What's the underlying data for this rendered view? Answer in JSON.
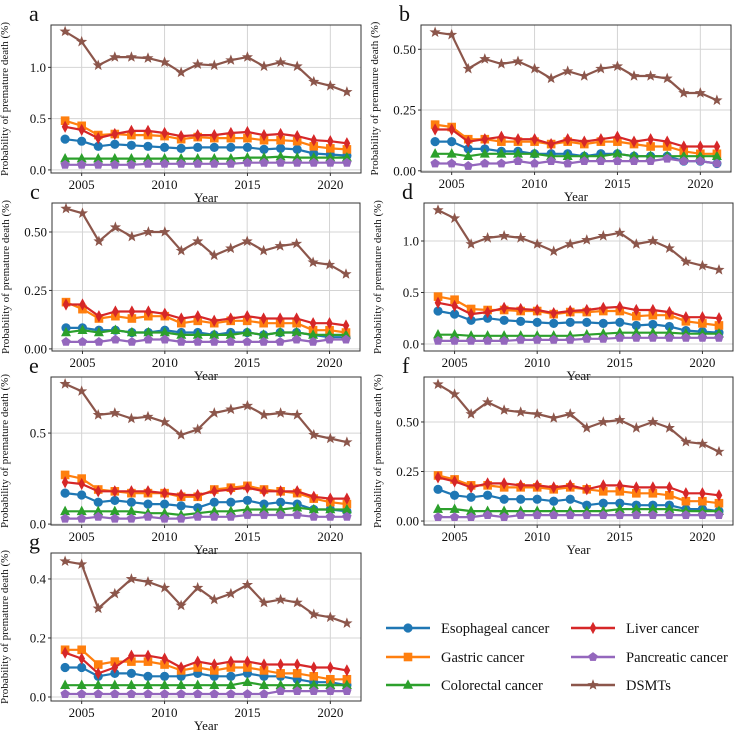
{
  "chart_data": {
    "type": "line",
    "xlabel": "Year",
    "ylabel": "Probability of premature death (%)",
    "x": [
      2004,
      2005,
      2006,
      2007,
      2008,
      2009,
      2010,
      2011,
      2012,
      2013,
      2014,
      2015,
      2016,
      2017,
      2018,
      2019,
      2020,
      2021
    ],
    "xlim": [
      2003.15,
      2021.85
    ],
    "xticks": [
      {
        "v": 2005,
        "label": "2005"
      },
      {
        "v": 2010,
        "label": "2010"
      },
      {
        "v": 2015,
        "label": "2015"
      },
      {
        "v": 2020,
        "label": "2020"
      }
    ],
    "grid": true,
    "legend_placement": "bottom-right",
    "series_meta": [
      {
        "name": "Esophageal cancer",
        "color": "#1f77b4",
        "marker": "circle"
      },
      {
        "name": "Gastric cancer",
        "color": "#ff7f0e",
        "marker": "square"
      },
      {
        "name": "Colorectal cancer",
        "color": "#2ca02c",
        "marker": "triangle"
      },
      {
        "name": "Liver cancer",
        "color": "#d62728",
        "marker": "thin-diamond"
      },
      {
        "name": "Pancreatic cancer",
        "color": "#9467bd",
        "marker": "pentagon"
      },
      {
        "name": "DSMTs",
        "color": "#8c564b",
        "marker": "star"
      }
    ],
    "panels": [
      {
        "label": "a",
        "ylim": [
          -0.03,
          1.413
        ],
        "yticks": [
          {
            "v": 0,
            "label": "0.0"
          },
          {
            "v": 0.5,
            "label": "0.5"
          },
          {
            "v": 1.0,
            "label": "1.0"
          }
        ],
        "series": [
          [
            0.3,
            0.28,
            0.23,
            0.25,
            0.24,
            0.23,
            0.22,
            0.21,
            0.22,
            0.22,
            0.22,
            0.22,
            0.2,
            0.21,
            0.2,
            0.16,
            0.15,
            0.14
          ],
          [
            0.48,
            0.43,
            0.34,
            0.35,
            0.34,
            0.34,
            0.33,
            0.3,
            0.32,
            0.31,
            0.31,
            0.31,
            0.29,
            0.29,
            0.28,
            0.23,
            0.21,
            0.2
          ],
          [
            0.11,
            0.11,
            0.11,
            0.11,
            0.11,
            0.11,
            0.11,
            0.11,
            0.11,
            0.11,
            0.11,
            0.12,
            0.12,
            0.13,
            0.12,
            0.12,
            0.12,
            0.12
          ],
          [
            0.42,
            0.39,
            0.31,
            0.35,
            0.38,
            0.38,
            0.36,
            0.33,
            0.34,
            0.34,
            0.36,
            0.37,
            0.34,
            0.35,
            0.33,
            0.29,
            0.28,
            0.26
          ],
          [
            0.05,
            0.05,
            0.05,
            0.05,
            0.05,
            0.06,
            0.06,
            0.06,
            0.06,
            0.06,
            0.06,
            0.07,
            0.07,
            0.07,
            0.07,
            0.07,
            0.07,
            0.07
          ],
          [
            1.35,
            1.25,
            1.02,
            1.1,
            1.1,
            1.09,
            1.05,
            0.95,
            1.03,
            1.02,
            1.07,
            1.1,
            1.01,
            1.05,
            1.01,
            0.86,
            0.82,
            0.76
          ]
        ]
      },
      {
        "label": "b",
        "ylim": [
          -0.005,
          0.6
        ],
        "yticks": [
          {
            "v": 0,
            "label": "0.00"
          },
          {
            "v": 0.25,
            "label": "0.25"
          },
          {
            "v": 0.5,
            "label": "0.50"
          }
        ],
        "series": [
          [
            0.12,
            0.12,
            0.09,
            0.09,
            0.08,
            0.08,
            0.07,
            0.07,
            0.07,
            0.06,
            0.07,
            0.07,
            0.06,
            0.06,
            0.06,
            0.04,
            0.04,
            0.03
          ],
          [
            0.19,
            0.18,
            0.13,
            0.13,
            0.12,
            0.12,
            0.12,
            0.11,
            0.12,
            0.11,
            0.12,
            0.12,
            0.11,
            0.1,
            0.1,
            0.08,
            0.07,
            0.07
          ],
          [
            0.07,
            0.07,
            0.06,
            0.07,
            0.07,
            0.07,
            0.07,
            0.06,
            0.06,
            0.06,
            0.06,
            0.07,
            0.06,
            0.06,
            0.06,
            0.06,
            0.06,
            0.06
          ],
          [
            0.17,
            0.17,
            0.12,
            0.13,
            0.14,
            0.13,
            0.13,
            0.11,
            0.13,
            0.12,
            0.13,
            0.14,
            0.12,
            0.13,
            0.12,
            0.1,
            0.1,
            0.1
          ],
          [
            0.03,
            0.03,
            0.02,
            0.03,
            0.03,
            0.04,
            0.03,
            0.04,
            0.03,
            0.04,
            0.04,
            0.04,
            0.04,
            0.04,
            0.05,
            0.04,
            0.04,
            0.03
          ],
          [
            0.57,
            0.56,
            0.42,
            0.46,
            0.44,
            0.45,
            0.42,
            0.38,
            0.41,
            0.39,
            0.42,
            0.43,
            0.39,
            0.39,
            0.38,
            0.32,
            0.32,
            0.29
          ]
        ]
      },
      {
        "label": "c",
        "ylim": [
          -0.009,
          0.624
        ],
        "yticks": [
          {
            "v": 0,
            "label": "0.00"
          },
          {
            "v": 0.25,
            "label": "0.25"
          },
          {
            "v": 0.5,
            "label": "0.50"
          }
        ],
        "series": [
          [
            0.09,
            0.09,
            0.08,
            0.08,
            0.07,
            0.07,
            0.08,
            0.07,
            0.07,
            0.06,
            0.07,
            0.07,
            0.06,
            0.07,
            0.07,
            0.06,
            0.05,
            0.05
          ],
          [
            0.2,
            0.17,
            0.13,
            0.14,
            0.13,
            0.14,
            0.14,
            0.11,
            0.12,
            0.11,
            0.12,
            0.12,
            0.11,
            0.11,
            0.11,
            0.08,
            0.08,
            0.07
          ],
          [
            0.07,
            0.08,
            0.07,
            0.08,
            0.07,
            0.07,
            0.07,
            0.06,
            0.06,
            0.06,
            0.06,
            0.07,
            0.06,
            0.07,
            0.07,
            0.06,
            0.06,
            0.06
          ],
          [
            0.19,
            0.19,
            0.14,
            0.16,
            0.16,
            0.16,
            0.15,
            0.13,
            0.14,
            0.12,
            0.13,
            0.14,
            0.13,
            0.13,
            0.13,
            0.11,
            0.11,
            0.1
          ],
          [
            0.03,
            0.03,
            0.03,
            0.04,
            0.03,
            0.04,
            0.04,
            0.03,
            0.03,
            0.03,
            0.03,
            0.03,
            0.03,
            0.03,
            0.04,
            0.03,
            0.04,
            0.04
          ],
          [
            0.6,
            0.58,
            0.46,
            0.52,
            0.48,
            0.5,
            0.5,
            0.42,
            0.46,
            0.4,
            0.43,
            0.46,
            0.42,
            0.44,
            0.45,
            0.37,
            0.36,
            0.32
          ]
        ]
      },
      {
        "label": "d",
        "ylim": [
          -0.068,
          1.369
        ],
        "yticks": [
          {
            "v": 0,
            "label": "0.0"
          },
          {
            "v": 0.5,
            "label": "0.5"
          },
          {
            "v": 1.0,
            "label": "1.0"
          }
        ],
        "series": [
          [
            0.32,
            0.29,
            0.23,
            0.25,
            0.23,
            0.22,
            0.21,
            0.2,
            0.21,
            0.21,
            0.2,
            0.21,
            0.18,
            0.19,
            0.17,
            0.13,
            0.12,
            0.11
          ],
          [
            0.46,
            0.43,
            0.34,
            0.33,
            0.33,
            0.32,
            0.32,
            0.29,
            0.31,
            0.31,
            0.32,
            0.32,
            0.27,
            0.28,
            0.28,
            0.22,
            0.2,
            0.18
          ],
          [
            0.09,
            0.09,
            0.08,
            0.08,
            0.08,
            0.08,
            0.08,
            0.08,
            0.08,
            0.09,
            0.1,
            0.11,
            0.11,
            0.11,
            0.11,
            0.1,
            0.1,
            0.1
          ],
          [
            0.4,
            0.37,
            0.29,
            0.31,
            0.35,
            0.34,
            0.33,
            0.3,
            0.32,
            0.33,
            0.35,
            0.36,
            0.33,
            0.33,
            0.31,
            0.26,
            0.26,
            0.25
          ],
          [
            0.03,
            0.03,
            0.03,
            0.03,
            0.03,
            0.04,
            0.04,
            0.04,
            0.04,
            0.05,
            0.05,
            0.06,
            0.06,
            0.06,
            0.06,
            0.06,
            0.06,
            0.06
          ],
          [
            1.3,
            1.22,
            0.97,
            1.03,
            1.05,
            1.03,
            0.97,
            0.9,
            0.97,
            1.01,
            1.05,
            1.08,
            0.97,
            1.0,
            0.93,
            0.8,
            0.76,
            0.72
          ]
        ]
      },
      {
        "label": "e",
        "ylim": [
          -0.005,
          0.808
        ],
        "yticks": [
          {
            "v": 0,
            "label": "0.0"
          },
          {
            "v": 0.5,
            "label": "0.5"
          }
        ],
        "series": [
          [
            0.17,
            0.16,
            0.12,
            0.13,
            0.12,
            0.11,
            0.11,
            0.1,
            0.09,
            0.12,
            0.12,
            0.13,
            0.11,
            0.12,
            0.11,
            0.08,
            0.08,
            0.07
          ],
          [
            0.27,
            0.25,
            0.19,
            0.18,
            0.17,
            0.17,
            0.17,
            0.15,
            0.15,
            0.19,
            0.2,
            0.21,
            0.19,
            0.18,
            0.17,
            0.14,
            0.12,
            0.11
          ],
          [
            0.07,
            0.07,
            0.07,
            0.07,
            0.07,
            0.06,
            0.06,
            0.05,
            0.06,
            0.07,
            0.07,
            0.08,
            0.08,
            0.08,
            0.09,
            0.08,
            0.08,
            0.08
          ],
          [
            0.23,
            0.22,
            0.18,
            0.18,
            0.18,
            0.18,
            0.17,
            0.16,
            0.16,
            0.18,
            0.19,
            0.2,
            0.18,
            0.18,
            0.18,
            0.15,
            0.14,
            0.14
          ],
          [
            0.03,
            0.03,
            0.04,
            0.03,
            0.03,
            0.04,
            0.03,
            0.03,
            0.04,
            0.04,
            0.04,
            0.05,
            0.05,
            0.05,
            0.05,
            0.04,
            0.04,
            0.04
          ],
          [
            0.77,
            0.73,
            0.6,
            0.61,
            0.58,
            0.59,
            0.56,
            0.49,
            0.52,
            0.61,
            0.63,
            0.65,
            0.6,
            0.61,
            0.6,
            0.49,
            0.47,
            0.45
          ]
        ]
      },
      {
        "label": "f",
        "ylim": [
          -0.02,
          0.727
        ],
        "yticks": [
          {
            "v": 0,
            "label": "0.00"
          },
          {
            "v": 0.25,
            "label": "0.25"
          },
          {
            "v": 0.5,
            "label": "0.50"
          }
        ],
        "series": [
          [
            0.16,
            0.13,
            0.12,
            0.13,
            0.11,
            0.11,
            0.11,
            0.1,
            0.11,
            0.08,
            0.09,
            0.09,
            0.08,
            0.08,
            0.08,
            0.06,
            0.06,
            0.05
          ],
          [
            0.23,
            0.21,
            0.18,
            0.18,
            0.17,
            0.17,
            0.17,
            0.16,
            0.17,
            0.16,
            0.15,
            0.15,
            0.14,
            0.14,
            0.13,
            0.1,
            0.1,
            0.09
          ],
          [
            0.06,
            0.06,
            0.05,
            0.05,
            0.05,
            0.05,
            0.05,
            0.05,
            0.05,
            0.05,
            0.05,
            0.06,
            0.06,
            0.06,
            0.06,
            0.05,
            0.05,
            0.05
          ],
          [
            0.22,
            0.2,
            0.17,
            0.19,
            0.19,
            0.18,
            0.18,
            0.17,
            0.18,
            0.16,
            0.18,
            0.18,
            0.17,
            0.17,
            0.17,
            0.14,
            0.14,
            0.13
          ],
          [
            0.02,
            0.02,
            0.02,
            0.03,
            0.02,
            0.03,
            0.03,
            0.03,
            0.03,
            0.03,
            0.03,
            0.03,
            0.03,
            0.03,
            0.03,
            0.03,
            0.03,
            0.03
          ],
          [
            0.69,
            0.64,
            0.54,
            0.6,
            0.56,
            0.55,
            0.54,
            0.52,
            0.54,
            0.47,
            0.5,
            0.51,
            0.47,
            0.5,
            0.47,
            0.4,
            0.39,
            0.35
          ]
        ]
      },
      {
        "label": "g",
        "ylim": [
          -0.0136,
          0.488
        ],
        "yticks": [
          {
            "v": 0,
            "label": "0.0"
          },
          {
            "v": 0.2,
            "label": "0.2"
          },
          {
            "v": 0.4,
            "label": "0.4"
          }
        ],
        "series": [
          [
            0.1,
            0.1,
            0.07,
            0.08,
            0.08,
            0.07,
            0.07,
            0.07,
            0.08,
            0.07,
            0.07,
            0.08,
            0.07,
            0.07,
            0.06,
            0.05,
            0.05,
            0.04
          ],
          [
            0.16,
            0.16,
            0.11,
            0.12,
            0.12,
            0.12,
            0.11,
            0.09,
            0.1,
            0.09,
            0.1,
            0.1,
            0.09,
            0.08,
            0.08,
            0.07,
            0.06,
            0.06
          ],
          [
            0.04,
            0.04,
            0.04,
            0.04,
            0.04,
            0.04,
            0.04,
            0.04,
            0.04,
            0.04,
            0.04,
            0.05,
            0.04,
            0.04,
            0.04,
            0.04,
            0.04,
            0.04
          ],
          [
            0.15,
            0.13,
            0.08,
            0.1,
            0.14,
            0.14,
            0.13,
            0.1,
            0.12,
            0.11,
            0.12,
            0.12,
            0.11,
            0.11,
            0.11,
            0.1,
            0.1,
            0.09
          ],
          [
            0.01,
            0.01,
            0.01,
            0.01,
            0.01,
            0.01,
            0.01,
            0.01,
            0.01,
            0.01,
            0.01,
            0.01,
            0.01,
            0.02,
            0.02,
            0.02,
            0.02,
            0.02
          ],
          [
            0.46,
            0.45,
            0.3,
            0.35,
            0.4,
            0.39,
            0.37,
            0.31,
            0.37,
            0.33,
            0.35,
            0.38,
            0.32,
            0.33,
            0.32,
            0.28,
            0.27,
            0.25
          ]
        ]
      }
    ]
  }
}
